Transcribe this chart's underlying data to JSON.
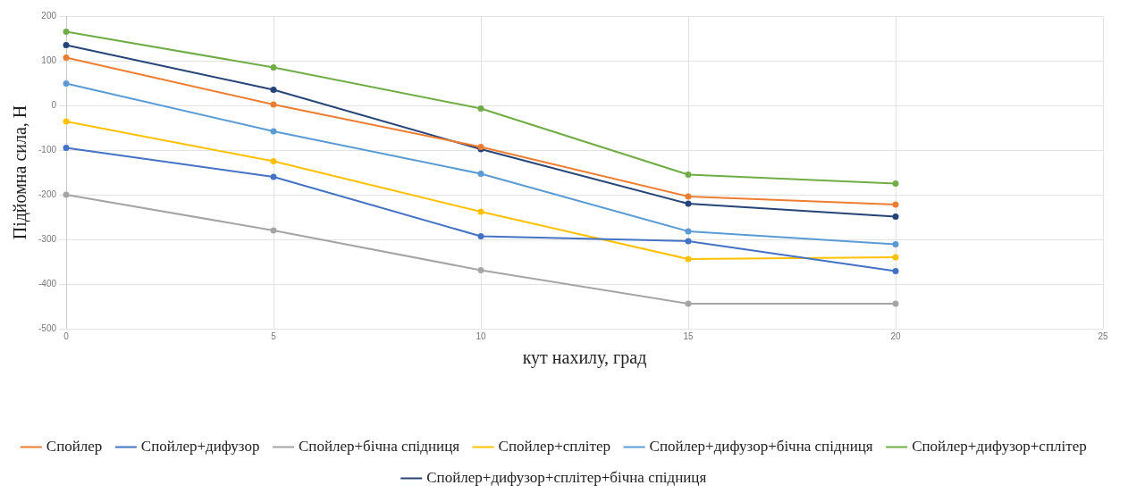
{
  "chart_data": {
    "type": "line",
    "xlabel": "кут нахилу, град",
    "ylabel": "Підйомна сила, Н",
    "x": [
      0,
      5,
      10,
      15,
      20
    ],
    "xlim": [
      0,
      25
    ],
    "xticks": [
      0,
      5,
      10,
      15,
      20,
      25
    ],
    "ylim": [
      -500,
      200
    ],
    "yticks": [
      -500,
      -400,
      -300,
      -200,
      -100,
      0,
      100,
      200
    ],
    "grid": true,
    "legend": "bottom",
    "marker": "circle",
    "line_style": "solid",
    "series": [
      {
        "name": "Спойлер",
        "color": "#ed7d31",
        "values": [
          107,
          2,
          -93,
          -204,
          -222
        ]
      },
      {
        "name": "Спойлер+дифузор",
        "color": "#4472c4",
        "values": [
          -95,
          -160,
          -293,
          -304,
          -371
        ]
      },
      {
        "name": "Спойлер+бічна спідниця",
        "color": "#a5a5a5",
        "values": [
          -200,
          -280,
          -369,
          -444,
          -444
        ]
      },
      {
        "name": "Спойлер+сплітер",
        "color": "#ffc000",
        "values": [
          -36,
          -125,
          -238,
          -344,
          -340
        ]
      },
      {
        "name": "Спойлер+дифузор+бічна спідниця",
        "color": "#5b9bd5",
        "values": [
          49,
          -58,
          -153,
          -282,
          -311
        ]
      },
      {
        "name": "Спойлер+дифузор+сплітер",
        "color": "#70ad47",
        "values": [
          165,
          85,
          -7,
          -155,
          -175
        ]
      },
      {
        "name": "Спойлер+дифузор+сплітер+бічна спідниця",
        "color": "#264478",
        "values": [
          135,
          35,
          -98,
          -220,
          -249
        ]
      }
    ]
  }
}
